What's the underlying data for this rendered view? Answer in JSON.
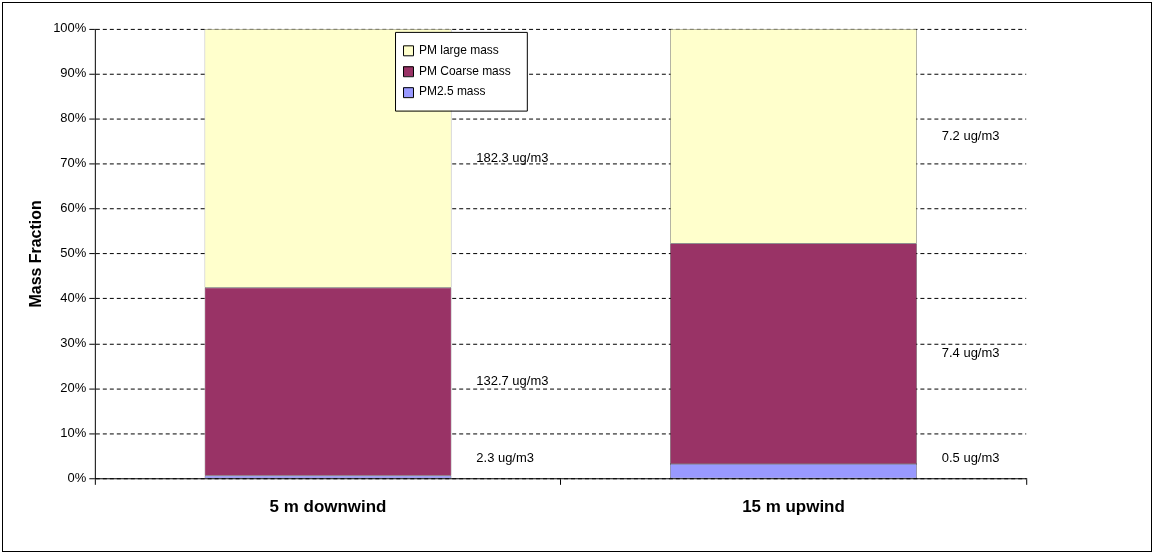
{
  "chart_data": {
    "type": "bar",
    "stacked": true,
    "ylabel": "Mass Fraction",
    "categories": [
      "5 m downwind",
      "15 m upwind"
    ],
    "series": [
      {
        "name": "PM2.5 mass",
        "color": "#9999ff",
        "values": [
          0.7,
          3.3
        ]
      },
      {
        "name": "PM Coarse mass",
        "color": "#993366",
        "values": [
          41.8,
          49.0
        ]
      },
      {
        "name": "PM large mass",
        "color": "#ffffcc",
        "values": [
          57.5,
          47.7
        ]
      }
    ],
    "annotations": [
      "182.3 ug/m3",
      "132.7 ug/m3",
      "2.3 ug/m3",
      "7.2 ug/m3",
      "7.4 ug/m3",
      "0.5 ug/m3"
    ],
    "ylim": [
      0,
      100
    ],
    "yticks": [
      {
        "value": 0,
        "label": "0%"
      },
      {
        "value": 10,
        "label": "10%"
      },
      {
        "value": 20,
        "label": "20%"
      },
      {
        "value": 30,
        "label": "30%"
      },
      {
        "value": 40,
        "label": "40%"
      },
      {
        "value": 50,
        "label": "50%"
      },
      {
        "value": 60,
        "label": "60%"
      },
      {
        "value": 70,
        "label": "70%"
      },
      {
        "value": 80,
        "label": "80%"
      },
      {
        "value": 90,
        "label": "90%"
      },
      {
        "value": 100,
        "label": "100%"
      }
    ],
    "grid": "y",
    "legend": "top"
  }
}
